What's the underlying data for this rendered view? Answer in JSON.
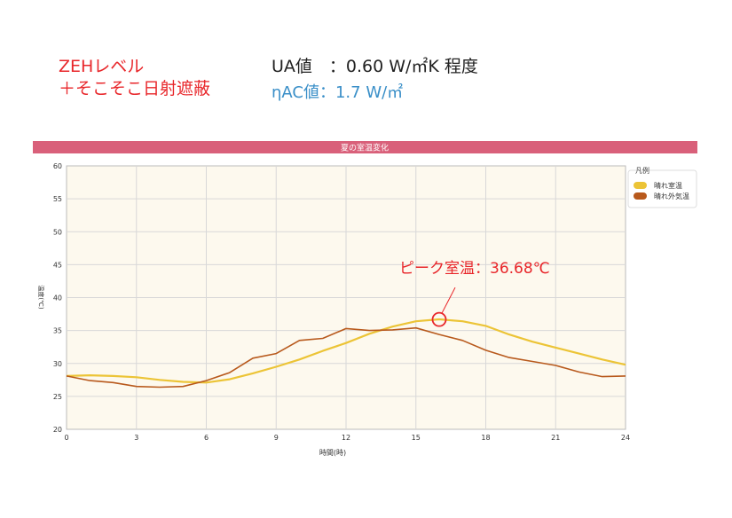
{
  "header": {
    "line1": "ZEHレベル",
    "line2": "＋そこそこ日射遮蔽",
    "ua": "UA値　：0.60 W/㎡K 程度",
    "eta": "ηAC値：1.7 W/㎡"
  },
  "chart_data": {
    "type": "line",
    "title": "夏の室温変化",
    "xlabel": "時間(時)",
    "ylabel": "温度(℃)",
    "xlim": [
      0,
      24
    ],
    "ylim": [
      20,
      60
    ],
    "xticks": [
      0,
      3,
      6,
      9,
      12,
      15,
      18,
      21,
      24
    ],
    "yticks": [
      20,
      25,
      30,
      35,
      40,
      45,
      50,
      55,
      60
    ],
    "grid": true,
    "legend_title": "凡例",
    "legend_position": "top-right",
    "x": [
      0,
      1,
      2,
      3,
      4,
      5,
      6,
      7,
      8,
      9,
      10,
      11,
      12,
      13,
      14,
      15,
      16,
      17,
      18,
      19,
      20,
      21,
      22,
      23,
      24
    ],
    "series": [
      {
        "name": "晴れ室温",
        "color": "#ecc436",
        "values": [
          28.1,
          28.2,
          28.1,
          27.9,
          27.5,
          27.2,
          27.1,
          27.6,
          28.5,
          29.5,
          30.6,
          31.9,
          33.1,
          34.5,
          35.6,
          36.4,
          36.7,
          36.4,
          35.7,
          34.4,
          33.3,
          32.4,
          31.5,
          30.6,
          29.8
        ]
      },
      {
        "name": "晴れ外気温",
        "color": "#b8591c",
        "values": [
          28.1,
          27.4,
          27.1,
          26.5,
          26.4,
          26.5,
          27.4,
          28.6,
          30.8,
          31.5,
          33.5,
          33.8,
          35.3,
          35.0,
          35.1,
          35.4,
          34.4,
          33.5,
          32.0,
          30.9,
          30.3,
          29.7,
          28.7,
          28.0,
          28.1
        ]
      }
    ],
    "annotation": {
      "text": "ピーク室温：36.68℃",
      "x": 16,
      "y": 36.68,
      "color": "#e8262a"
    }
  }
}
